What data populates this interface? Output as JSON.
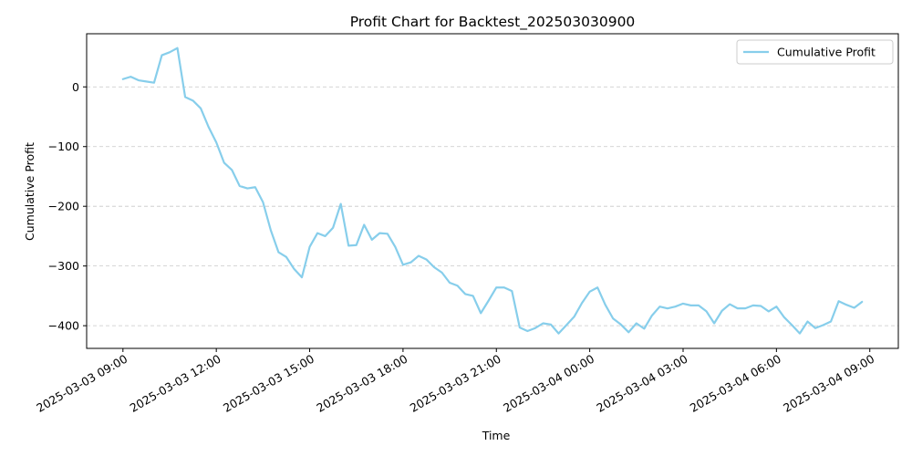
{
  "chart_data": {
    "type": "line",
    "title": "Profit Chart for Backtest_202503030900",
    "xlabel": "Time",
    "ylabel": "Cumulative Profit",
    "x_ticks": [
      "2025-03-03 09:00",
      "2025-03-03 12:00",
      "2025-03-03 15:00",
      "2025-03-03 18:00",
      "2025-03-03 21:00",
      "2025-03-04 00:00",
      "2025-03-04 03:00",
      "2025-03-04 06:00",
      "2025-03-04 09:00"
    ],
    "y_ticks": [
      0,
      -100,
      -200,
      -300,
      -400
    ],
    "ylim": [
      -438,
      89
    ],
    "xlim": [
      "2025-03-03 07:50",
      "2025-03-04 09:55"
    ],
    "grid": "y-only, dashed",
    "legend_position": "top-right",
    "series": [
      {
        "name": "Cumulative Profit",
        "color": "#87ceeb",
        "x": [
          "2025-03-03 09:00",
          "2025-03-03 09:15",
          "2025-03-03 09:30",
          "2025-03-03 09:45",
          "2025-03-03 10:00",
          "2025-03-03 10:15",
          "2025-03-03 10:30",
          "2025-03-03 10:45",
          "2025-03-03 11:00",
          "2025-03-03 11:15",
          "2025-03-03 11:30",
          "2025-03-03 11:45",
          "2025-03-03 12:00",
          "2025-03-03 12:15",
          "2025-03-03 12:30",
          "2025-03-03 12:45",
          "2025-03-03 13:00",
          "2025-03-03 13:15",
          "2025-03-03 13:30",
          "2025-03-03 13:45",
          "2025-03-03 14:00",
          "2025-03-03 14:15",
          "2025-03-03 14:30",
          "2025-03-03 14:45",
          "2025-03-03 15:00",
          "2025-03-03 15:15",
          "2025-03-03 15:30",
          "2025-03-03 15:45",
          "2025-03-03 16:00",
          "2025-03-03 16:15",
          "2025-03-03 16:30",
          "2025-03-03 16:45",
          "2025-03-03 17:00",
          "2025-03-03 17:15",
          "2025-03-03 17:30",
          "2025-03-03 17:45",
          "2025-03-03 18:00",
          "2025-03-03 18:15",
          "2025-03-03 18:30",
          "2025-03-03 18:45",
          "2025-03-03 19:00",
          "2025-03-03 19:15",
          "2025-03-03 19:30",
          "2025-03-03 19:45",
          "2025-03-03 20:00",
          "2025-03-03 20:15",
          "2025-03-03 20:30",
          "2025-03-03 20:45",
          "2025-03-03 21:00",
          "2025-03-03 21:15",
          "2025-03-03 21:30",
          "2025-03-03 21:45",
          "2025-03-03 22:00",
          "2025-03-03 22:15",
          "2025-03-03 22:30",
          "2025-03-03 22:45",
          "2025-03-03 23:00",
          "2025-03-03 23:15",
          "2025-03-03 23:30",
          "2025-03-03 23:45",
          "2025-03-04 00:00",
          "2025-03-04 00:15",
          "2025-03-04 00:30",
          "2025-03-04 00:45",
          "2025-03-04 01:00",
          "2025-03-04 01:15",
          "2025-03-04 01:30",
          "2025-03-04 01:45",
          "2025-03-04 02:00",
          "2025-03-04 02:15",
          "2025-03-04 02:30",
          "2025-03-04 02:45",
          "2025-03-04 03:00",
          "2025-03-04 03:15",
          "2025-03-04 03:30",
          "2025-03-04 03:45",
          "2025-03-04 04:00",
          "2025-03-04 04:15",
          "2025-03-04 04:30",
          "2025-03-04 04:45",
          "2025-03-04 05:00",
          "2025-03-04 05:15",
          "2025-03-04 05:30",
          "2025-03-04 05:45",
          "2025-03-04 06:00",
          "2025-03-04 06:15",
          "2025-03-04 06:30",
          "2025-03-04 06:45",
          "2025-03-04 07:00",
          "2025-03-04 07:15",
          "2025-03-04 07:30",
          "2025-03-04 07:45",
          "2025-03-04 08:00",
          "2025-03-04 08:15",
          "2025-03-04 08:30",
          "2025-03-04 08:45"
        ],
        "y": [
          13,
          17,
          11,
          9,
          7,
          53,
          58,
          65,
          -17,
          -23,
          -36,
          -67,
          -93,
          -127,
          -139,
          -166,
          -170,
          -168,
          -193,
          -240,
          -277,
          -285,
          -305,
          -319,
          -268,
          -245,
          -250,
          -236,
          -196,
          -266,
          -265,
          -231,
          -256,
          -245,
          -246,
          -268,
          -298,
          -294,
          -283,
          -289,
          -302,
          -311,
          -328,
          -333,
          -347,
          -350,
          -379,
          -358,
          -336,
          -336,
          -342,
          -403,
          -409,
          -404,
          -396,
          -398,
          -413,
          -399,
          -385,
          -362,
          -343,
          -336,
          -365,
          -388,
          -398,
          -411,
          -396,
          -405,
          -383,
          -368,
          -371,
          -368,
          -363,
          -366,
          -366,
          -376,
          -396,
          -375,
          -364,
          -371,
          -371,
          -366,
          -367,
          -376,
          -368,
          -386,
          -399,
          -413,
          -393,
          -404,
          -399,
          -393,
          -359,
          -365,
          -370,
          -360
        ]
      }
    ]
  }
}
